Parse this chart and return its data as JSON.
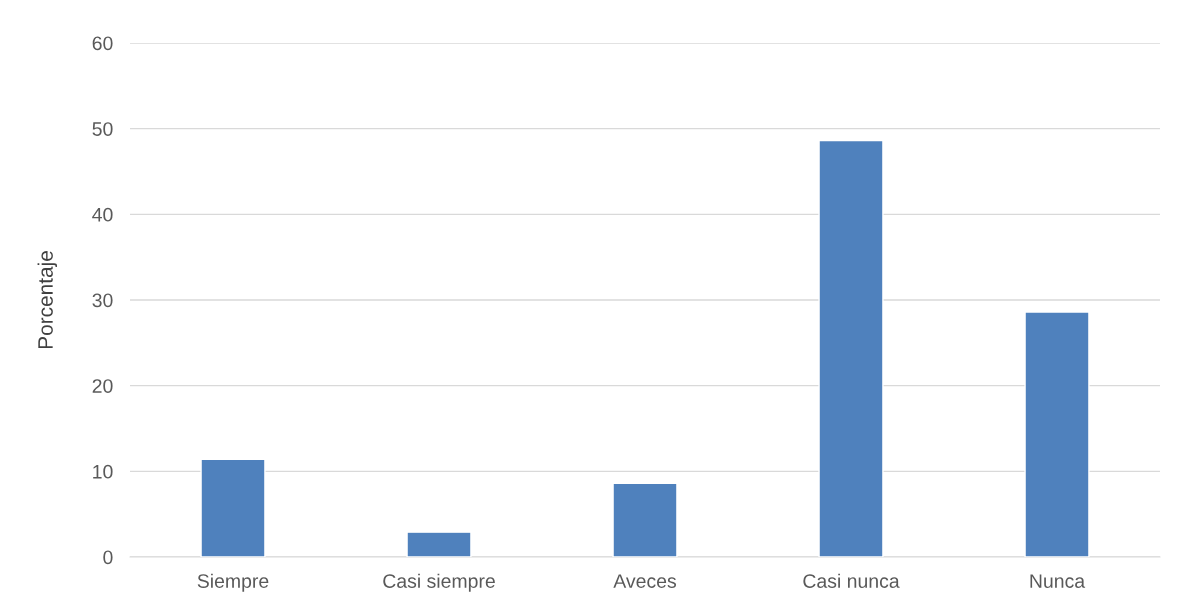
{
  "chart_data": {
    "type": "bar",
    "ylabel": "Porcentaje",
    "categories": [
      "Siempre",
      "Casi siempre",
      "Aveces",
      "Casi nunca",
      "Nunca"
    ],
    "values": [
      11.4,
      2.9,
      8.6,
      48.6,
      28.6
    ],
    "color": "#4f81bd",
    "ylim": [
      0,
      60
    ],
    "yticks": [
      0,
      10,
      20,
      30,
      40,
      50,
      60
    ],
    "grid": "y",
    "legend": false
  }
}
